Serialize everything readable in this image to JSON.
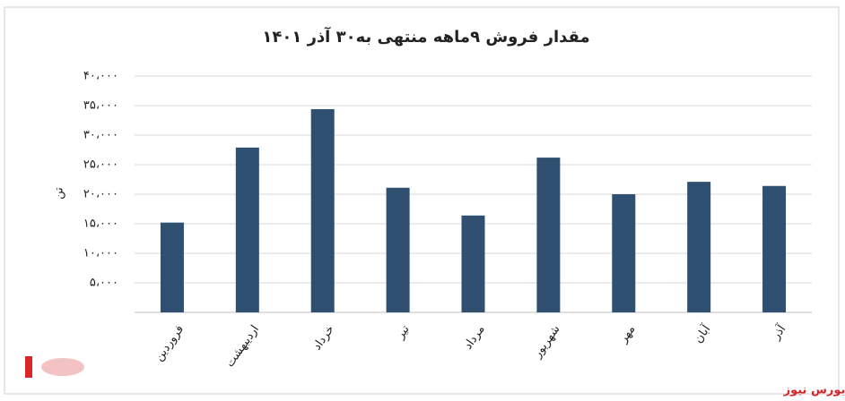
{
  "chart_data": {
    "type": "bar",
    "title": "مقدار فروش ۹ماهه منتهی به۳۰ آذر ۱۴۰۱",
    "y_label": "تن",
    "categories": [
      "فروردین",
      "اردیبهشت",
      "خرداد",
      "تیر",
      "مرداد",
      "شهریور",
      "مهر",
      "آبان",
      "آذر"
    ],
    "values": [
      15200,
      27900,
      34400,
      21100,
      16400,
      26200,
      20000,
      22100,
      21400
    ],
    "color": "#2f5071",
    "ylim": [
      0,
      40000
    ],
    "yticks": [
      {
        "value": 5000,
        "label": "۵،۰۰۰"
      },
      {
        "value": 10000,
        "label": "۱۰،۰۰۰"
      },
      {
        "value": 15000,
        "label": "۱۵،۰۰۰"
      },
      {
        "value": 20000,
        "label": "۲۰،۰۰۰"
      },
      {
        "value": 25000,
        "label": "۲۵،۰۰۰"
      },
      {
        "value": 30000,
        "label": "۳۰،۰۰۰"
      },
      {
        "value": 35000,
        "label": "۳۵،۰۰۰"
      },
      {
        "value": 40000,
        "label": "۴۰،۰۰۰"
      }
    ],
    "grid": true,
    "watermark": "بورس نیوز"
  }
}
